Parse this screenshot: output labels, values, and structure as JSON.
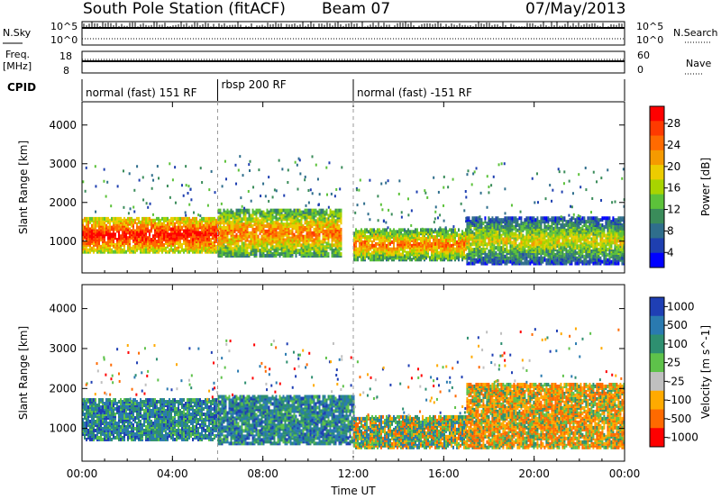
{
  "header": {
    "station": "South Pole Station (fitACF)",
    "beam": "Beam 07",
    "date": "07/May/2013"
  },
  "summary_panels": {
    "nsky_label": "N.Sky",
    "nsky_ticks": [
      "10^5",
      "10^0"
    ],
    "nsearch_label": "N.Search",
    "nsearch_ticks": [
      "10^5",
      "10^0"
    ],
    "freq_label_1": "Freq.",
    "freq_label_2": "[MHz]",
    "freq_ticks": [
      "18",
      "8"
    ],
    "nave_label": "Nave",
    "nave_ticks": [
      "60",
      "0"
    ],
    "cpid_label": "CPID"
  },
  "cpid_segments": [
    {
      "label": "normal (fast) 151 RF",
      "start_hour": 0
    },
    {
      "label": "rbsp 200 RF",
      "start_hour": 6
    },
    {
      "label": "normal (fast) -151 RF",
      "start_hour": 12
    }
  ],
  "chart_data": [
    {
      "type": "heatmap",
      "title": "",
      "xlabel": "Time UT",
      "ylabel": "Slant Range [km]",
      "x_ticks": [
        "00:00",
        "04:00",
        "08:00",
        "12:00",
        "16:00",
        "20:00",
        "00:00"
      ],
      "x_range_hours": [
        0,
        24
      ],
      "y_ticks": [
        "4000",
        "3000",
        "2000",
        "1000"
      ],
      "y_tick_values": [
        4000,
        3000,
        2000,
        1000
      ],
      "ylim": [
        180,
        4600
      ],
      "colorbar": {
        "label": "Power [dB]",
        "ticks": [
          "28",
          "24",
          "20",
          "16",
          "12",
          "8",
          "4"
        ],
        "colors": [
          "#ff0000",
          "#ff3a00",
          "#ff6a00",
          "#f59a00",
          "#eccc00",
          "#a8d400",
          "#5cc23a",
          "#3a8c5a",
          "#2f6e8c",
          "#1e3fb0",
          "#0000ff"
        ]
      },
      "bands": [
        {
          "hour_start": 0.0,
          "hour_end": 6.0,
          "range_low": 700,
          "range_high": 1600,
          "level": "strong"
        },
        {
          "hour_start": 6.0,
          "hour_end": 11.5,
          "range_low": 600,
          "range_high": 1800,
          "level": "medium"
        },
        {
          "hour_start": 12.0,
          "hour_end": 17.0,
          "range_low": 500,
          "range_high": 1300,
          "level": "medium"
        },
        {
          "hour_start": 17.0,
          "hour_end": 24.0,
          "range_low": 400,
          "range_high": 1600,
          "level": "weak"
        }
      ]
    },
    {
      "type": "heatmap",
      "title": "",
      "xlabel": "Time UT",
      "ylabel": "Slant Range [km]",
      "x_ticks": [
        "00:00",
        "04:00",
        "08:00",
        "12:00",
        "16:00",
        "20:00",
        "00:00"
      ],
      "x_range_hours": [
        0,
        24
      ],
      "y_ticks": [
        "4000",
        "3000",
        "2000",
        "1000"
      ],
      "y_tick_values": [
        4000,
        3000,
        2000,
        1000
      ],
      "ylim": [
        180,
        4600
      ],
      "colorbar": {
        "label": "Velocity [m s^-1]",
        "ticks": [
          "1000",
          "500",
          "100",
          "25",
          "-25",
          "-100",
          "-500",
          "-1000"
        ],
        "colors": [
          "#1f3fb4",
          "#2a7ab0",
          "#2e8f70",
          "#5ec24a",
          "#c0c0c0",
          "#ffaa00",
          "#ff6a00",
          "#ff0000"
        ]
      },
      "bands": [
        {
          "hour_start": 0.0,
          "hour_end": 6.0,
          "range_low": 700,
          "range_high": 1700,
          "level": "toward"
        },
        {
          "hour_start": 6.0,
          "hour_end": 12.0,
          "range_low": 600,
          "range_high": 1800,
          "level": "toward"
        },
        {
          "hour_start": 12.0,
          "hour_end": 17.0,
          "range_low": 500,
          "range_high": 1300,
          "level": "mixed"
        },
        {
          "hour_start": 17.0,
          "hour_end": 24.0,
          "range_low": 500,
          "range_high": 2100,
          "level": "away"
        }
      ]
    }
  ]
}
